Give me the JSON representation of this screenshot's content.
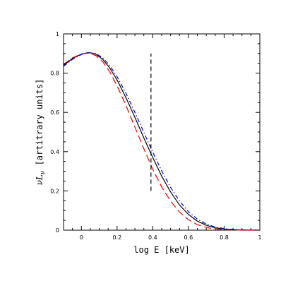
{
  "chart_data": {
    "type": "line",
    "title": "",
    "xlabel": "log E [keV]",
    "ylabel": {
      "var_main": "νL",
      "var_sub": "ν",
      "rest": " [artitrary units]"
    },
    "xlim": [
      -0.1,
      1.0
    ],
    "ylim": [
      0,
      1
    ],
    "x_ticks": [
      {
        "value": 0.0,
        "label": "0"
      },
      {
        "value": 0.2,
        "label": "0.2"
      },
      {
        "value": 0.4,
        "label": "0.4"
      },
      {
        "value": 0.6,
        "label": "0.6"
      },
      {
        "value": 0.8,
        "label": "0.8"
      },
      {
        "value": 1.0,
        "label": "1"
      }
    ],
    "y_ticks": [
      {
        "value": 0.0,
        "label": "0"
      },
      {
        "value": 0.2,
        "label": "0.2"
      },
      {
        "value": 0.4,
        "label": "0.4"
      },
      {
        "value": 0.6,
        "label": "0.6"
      },
      {
        "value": 0.8,
        "label": "0.8"
      },
      {
        "value": 1.0,
        "label": "1"
      }
    ],
    "grid": false,
    "legend": "none",
    "series": [
      {
        "color": "#000000",
        "style": "solid",
        "points": [
          [
            -0.1,
            0.84
          ],
          [
            -0.05,
            0.875
          ],
          [
            0.0,
            0.897
          ],
          [
            0.04,
            0.905
          ],
          [
            0.08,
            0.897
          ],
          [
            0.12,
            0.87
          ],
          [
            0.16,
            0.825
          ],
          [
            0.2,
            0.765
          ],
          [
            0.25,
            0.675
          ],
          [
            0.3,
            0.575
          ],
          [
            0.35,
            0.47
          ],
          [
            0.4,
            0.37
          ],
          [
            0.45,
            0.275
          ],
          [
            0.5,
            0.195
          ],
          [
            0.55,
            0.128
          ],
          [
            0.6,
            0.08
          ],
          [
            0.65,
            0.046
          ],
          [
            0.7,
            0.025
          ],
          [
            0.75,
            0.012
          ],
          [
            0.8,
            0.006
          ],
          [
            0.85,
            0.0025
          ],
          [
            0.9,
            0.001
          ],
          [
            1.0,
            0.0
          ]
        ]
      },
      {
        "color": "#0000dd",
        "style": "dash-dot",
        "points": [
          [
            -0.1,
            0.835
          ],
          [
            -0.05,
            0.87
          ],
          [
            0.0,
            0.895
          ],
          [
            0.04,
            0.905
          ],
          [
            0.08,
            0.9
          ],
          [
            0.12,
            0.878
          ],
          [
            0.16,
            0.838
          ],
          [
            0.2,
            0.782
          ],
          [
            0.25,
            0.697
          ],
          [
            0.3,
            0.6
          ],
          [
            0.35,
            0.498
          ],
          [
            0.4,
            0.397
          ],
          [
            0.45,
            0.302
          ],
          [
            0.5,
            0.218
          ],
          [
            0.55,
            0.148
          ],
          [
            0.6,
            0.094
          ],
          [
            0.65,
            0.056
          ],
          [
            0.7,
            0.031
          ],
          [
            0.75,
            0.016
          ],
          [
            0.8,
            0.008
          ],
          [
            0.85,
            0.004
          ],
          [
            0.9,
            0.0015
          ],
          [
            1.0,
            0.0
          ]
        ]
      },
      {
        "color": "#dd0000",
        "style": "long-dash",
        "points": [
          [
            -0.1,
            0.845
          ],
          [
            -0.05,
            0.878
          ],
          [
            0.0,
            0.898
          ],
          [
            0.04,
            0.902
          ],
          [
            0.08,
            0.89
          ],
          [
            0.12,
            0.858
          ],
          [
            0.16,
            0.805
          ],
          [
            0.2,
            0.735
          ],
          [
            0.25,
            0.635
          ],
          [
            0.3,
            0.525
          ],
          [
            0.35,
            0.415
          ],
          [
            0.4,
            0.31
          ],
          [
            0.45,
            0.22
          ],
          [
            0.5,
            0.148
          ],
          [
            0.55,
            0.092
          ],
          [
            0.6,
            0.053
          ],
          [
            0.65,
            0.028
          ],
          [
            0.7,
            0.014
          ],
          [
            0.75,
            0.006
          ],
          [
            0.8,
            0.0025
          ],
          [
            0.85,
            0.001
          ],
          [
            0.9,
            0.0
          ],
          [
            1.0,
            0.0
          ]
        ]
      }
    ],
    "annotations": [
      {
        "type": "vertical-line",
        "x": 0.39,
        "y_from": 0.2,
        "y_to": 0.9,
        "color": "#000000",
        "style": "dashed"
      }
    ]
  }
}
